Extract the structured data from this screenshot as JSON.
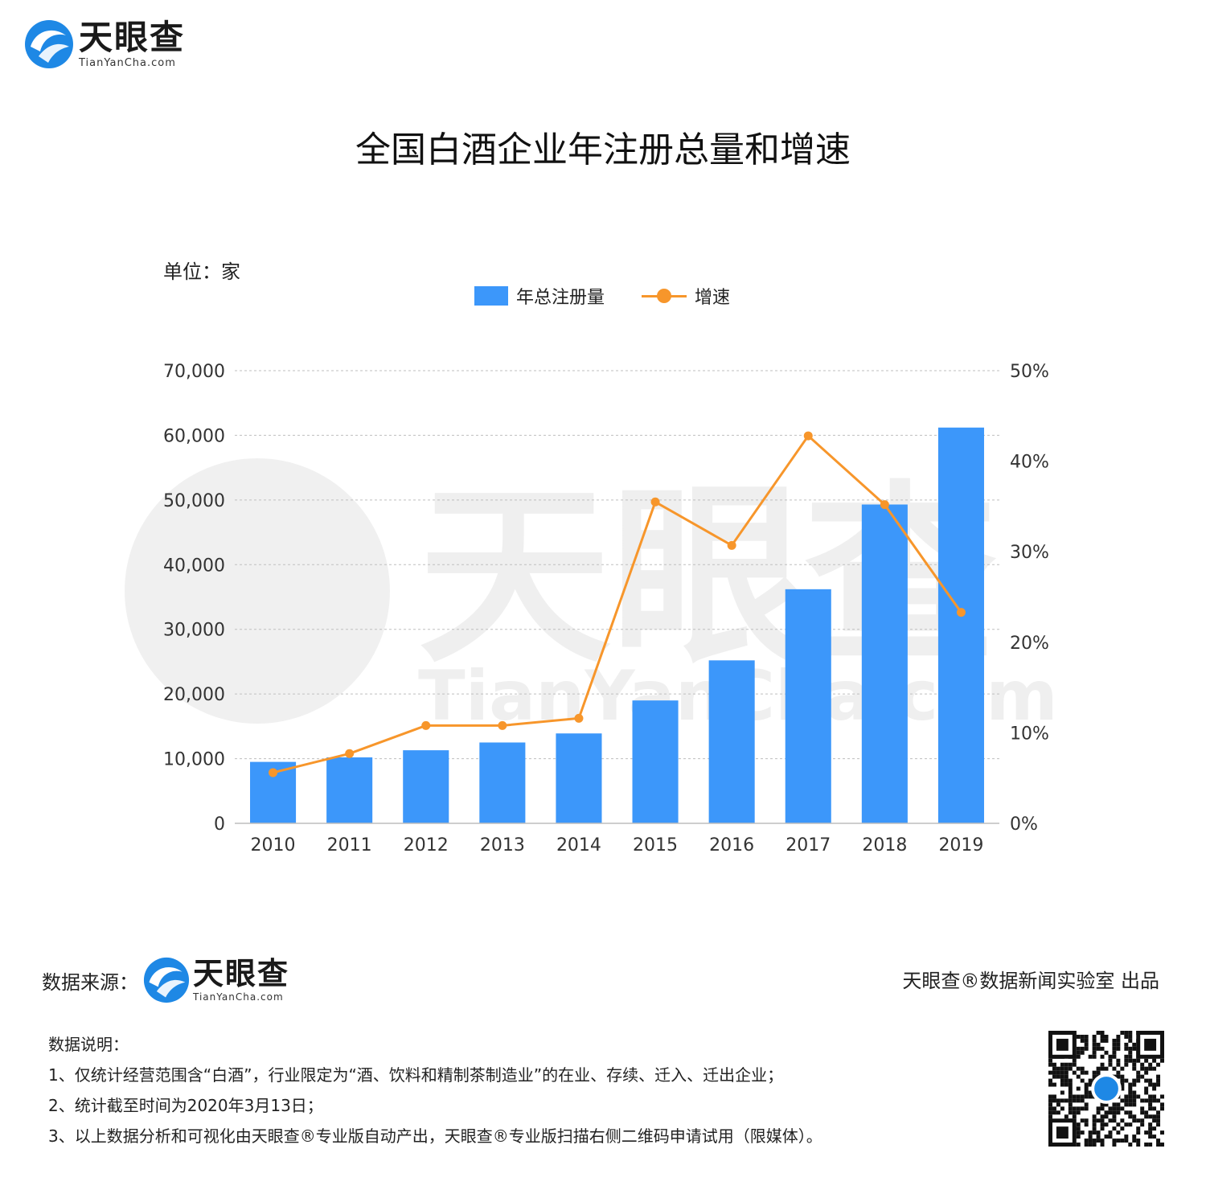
{
  "brand": {
    "cn": "天眼查",
    "en": "TianYanCha.com"
  },
  "title": "全国白酒企业年注册总量和增速",
  "unit_label": "单位：家",
  "legend": {
    "bar_label": "年总注册量",
    "line_label": "增速"
  },
  "colors": {
    "bar": "#3c97fa",
    "line": "#f7962b",
    "grid": "#bfbfbf"
  },
  "chart_data": {
    "type": "bar",
    "categories": [
      "2010",
      "2011",
      "2012",
      "2013",
      "2014",
      "2015",
      "2016",
      "2017",
      "2018",
      "2019"
    ],
    "series": [
      {
        "name": "年总注册量",
        "type": "bar",
        "axis": "left",
        "values": [
          9500,
          10200,
          11300,
          12500,
          13900,
          19000,
          25200,
          36200,
          49300,
          61200
        ]
      },
      {
        "name": "增速",
        "type": "line",
        "axis": "right",
        "unit": "%",
        "values": [
          5.6,
          7.7,
          10.8,
          10.8,
          11.6,
          35.5,
          30.7,
          42.8,
          35.2,
          23.3
        ]
      }
    ],
    "y_left": {
      "min": 0,
      "max": 70000,
      "ticks": [
        "0",
        "10,000",
        "20,000",
        "30,000",
        "40,000",
        "50,000",
        "60,000",
        "70,000"
      ]
    },
    "y_right": {
      "min": 0,
      "max": 50,
      "ticks": [
        "0%",
        "10%",
        "20%",
        "30%",
        "40%",
        "50%"
      ]
    },
    "grid": true,
    "legend_position": "top-center"
  },
  "footer": {
    "source_label": "数据来源：",
    "credit": "天眼查®数据新闻实验室 出品",
    "notes_title": "数据说明：",
    "notes": [
      "1、仅统计经营范围含“白酒”，行业限定为“酒、饮料和精制茶制造业”的在业、存续、迁入、迁出企业；",
      "2、统计截至时间为2020年3月13日；",
      "3、以上数据分析和可视化由天眼查®专业版自动产出，天眼查®专业版扫描右侧二维码申请试用（限媒体）。"
    ]
  }
}
